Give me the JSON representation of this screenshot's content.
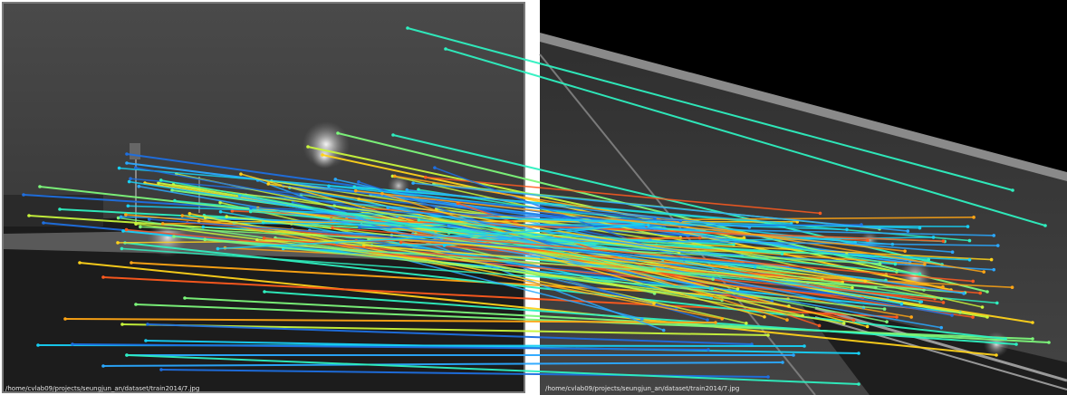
{
  "image_left": {
    "caption": "/home/cvlab09/projects/seungjun_an/dataset/train2014/7.jpg"
  },
  "image_right": {
    "caption": "/home/cvlab09/projects/seungjun_an/dataset/train2014/7.jpg"
  },
  "match_colors": [
    "#1e6fe0",
    "#2aa8ff",
    "#17d0f5",
    "#2ef0c0",
    "#7cf77a",
    "#c8f53c",
    "#ffd21a",
    "#ffa514",
    "#ff5a1e"
  ]
}
